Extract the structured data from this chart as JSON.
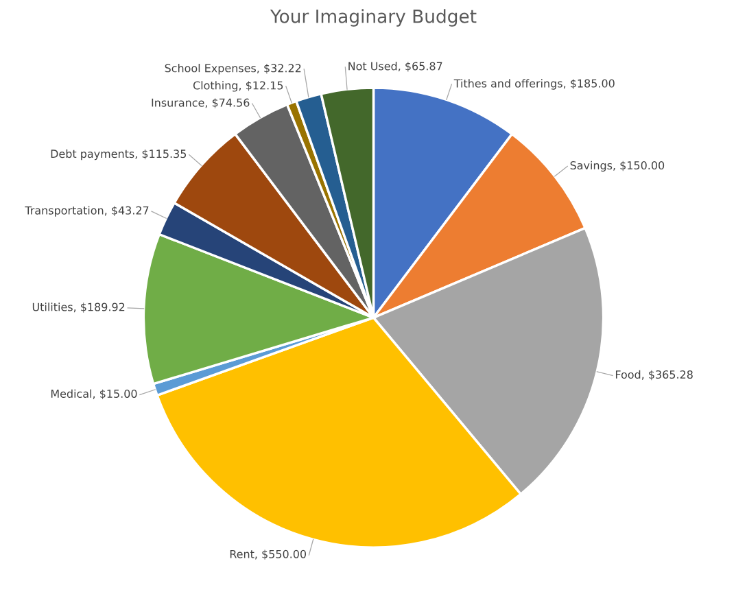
{
  "chart_data": {
    "type": "pie",
    "title": "Your Imaginary Budget",
    "categories": [
      "Tithes and offerings",
      "Savings",
      "Food",
      "Rent",
      "Medical",
      "Utilities",
      "Transportation",
      "Debt payments",
      "Insurance",
      "Clothing",
      "School Expenses",
      "Not Used"
    ],
    "values": [
      185.0,
      150.0,
      365.28,
      550.0,
      15.0,
      189.92,
      43.27,
      115.35,
      74.56,
      12.15,
      32.22,
      65.87
    ],
    "value_labels": [
      "$185.00",
      "$150.00",
      "$365.28",
      "$550.00",
      "$15.00",
      "$189.92",
      "$43.27",
      "$115.35",
      "$74.56",
      "$12.15",
      "$32.22",
      "$65.87"
    ],
    "colors": [
      "#4472c4",
      "#ed7d31",
      "#a5a5a5",
      "#ffc000",
      "#5b9bd5",
      "#70ad47",
      "#264478",
      "#9e480e",
      "#636363",
      "#997300",
      "#255e91",
      "#43682b"
    ],
    "legend": false
  }
}
